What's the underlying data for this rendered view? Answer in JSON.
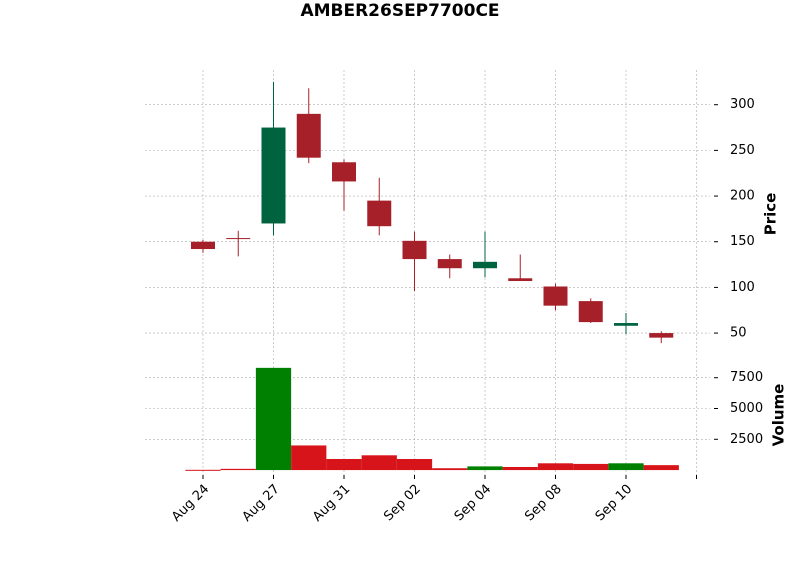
{
  "chart_data": {
    "type": "candlestick",
    "title": "AMBER26SEP7700CE",
    "categories": [
      "Aug 24",
      null,
      "Aug 27",
      null,
      "Aug 31",
      null,
      "Sep 02",
      null,
      "Sep 04",
      null,
      "Sep 08",
      null,
      "Sep 10",
      null
    ],
    "open": [
      150,
      154,
      170,
      290,
      237,
      195,
      151,
      131,
      121,
      110,
      101,
      85,
      58,
      50
    ],
    "high": [
      152,
      162,
      325,
      318,
      240,
      220,
      161,
      136,
      161,
      136,
      104,
      88,
      72,
      52
    ],
    "low": [
      138,
      134,
      157,
      236,
      184,
      157,
      96,
      110,
      111,
      107,
      75,
      61,
      49,
      39
    ],
    "close": [
      142,
      153,
      275,
      242,
      216,
      167,
      131,
      121,
      128,
      107,
      80,
      62,
      61,
      45
    ],
    "volume": [
      20,
      100,
      8300,
      2000,
      900,
      1200,
      900,
      150,
      300,
      250,
      550,
      500,
      550,
      400
    ],
    "ylabel": "Price",
    "volume_label": "Volume",
    "ylim": [
      26,
      338
    ],
    "yticks": [
      50,
      100,
      150,
      200,
      250,
      300
    ],
    "volume_ylim": [
      -400,
      9100
    ],
    "volume_yticks": [
      2500,
      5000,
      7500
    ],
    "up_color": "#006340",
    "down_color": "#a52029",
    "volume_up_color": "#008000",
    "volume_down_color": "#d7141a",
    "grid": true
  }
}
